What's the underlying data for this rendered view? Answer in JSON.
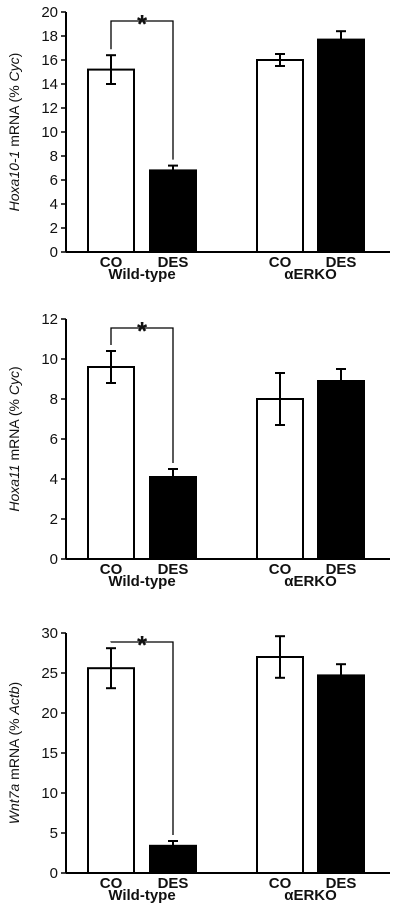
{
  "chart_data": [
    {
      "type": "bar",
      "ylabel": {
        "gene": "Hoxa10-1",
        "rest": " mRNA (% ",
        "ref": "Cyc",
        "close": ")"
      },
      "ylim": [
        0,
        20
      ],
      "yticks": [
        0,
        2,
        4,
        6,
        8,
        10,
        12,
        14,
        16,
        18,
        20
      ],
      "groups": [
        {
          "label": "Wild-type",
          "categories": [
            "CO",
            "DES"
          ],
          "values": [
            15.2,
            6.8
          ],
          "errors": [
            1.2,
            0.4
          ],
          "colors": [
            "#ffffff",
            "#000000"
          ]
        },
        {
          "label": "αERKO",
          "categories": [
            "CO",
            "DES"
          ],
          "values": [
            16.0,
            17.7
          ],
          "errors": [
            0.5,
            0.7
          ],
          "colors": [
            "#ffffff",
            "#000000"
          ]
        }
      ],
      "annotations": [
        {
          "text": "*",
          "between": [
            0,
            1
          ]
        }
      ]
    },
    {
      "type": "bar",
      "ylabel": {
        "gene": "Hoxa11",
        "rest": " mRNA (% ",
        "ref": "Cyc",
        "close": ")"
      },
      "ylim": [
        0,
        12
      ],
      "yticks": [
        0,
        2,
        4,
        6,
        8,
        10,
        12
      ],
      "groups": [
        {
          "label": "Wild-type",
          "categories": [
            "CO",
            "DES"
          ],
          "values": [
            9.6,
            4.1
          ],
          "errors": [
            0.8,
            0.4
          ],
          "colors": [
            "#ffffff",
            "#000000"
          ]
        },
        {
          "label": "αERKO",
          "categories": [
            "CO",
            "DES"
          ],
          "values": [
            8.0,
            8.9
          ],
          "errors": [
            1.3,
            0.6
          ],
          "colors": [
            "#ffffff",
            "#000000"
          ]
        }
      ],
      "annotations": [
        {
          "text": "*",
          "between": [
            0,
            1
          ]
        }
      ]
    },
    {
      "type": "bar",
      "ylabel": {
        "gene": "Wnt7a",
        "rest": " mRNA (% ",
        "ref": "Actb",
        "close": ")"
      },
      "ylim": [
        0,
        30
      ],
      "yticks": [
        0,
        5,
        10,
        15,
        20,
        25,
        30
      ],
      "groups": [
        {
          "label": "Wild-type",
          "categories": [
            "CO",
            "DES"
          ],
          "values": [
            25.6,
            3.4
          ],
          "errors": [
            2.5,
            0.6
          ],
          "colors": [
            "#ffffff",
            "#000000"
          ]
        },
        {
          "label": "αERKO",
          "categories": [
            "CO",
            "DES"
          ],
          "values": [
            27.0,
            24.7
          ],
          "errors": [
            2.6,
            1.4
          ],
          "colors": [
            "#ffffff",
            "#000000"
          ]
        }
      ],
      "annotations": [
        {
          "text": "*",
          "between": [
            0,
            1
          ]
        }
      ]
    }
  ]
}
